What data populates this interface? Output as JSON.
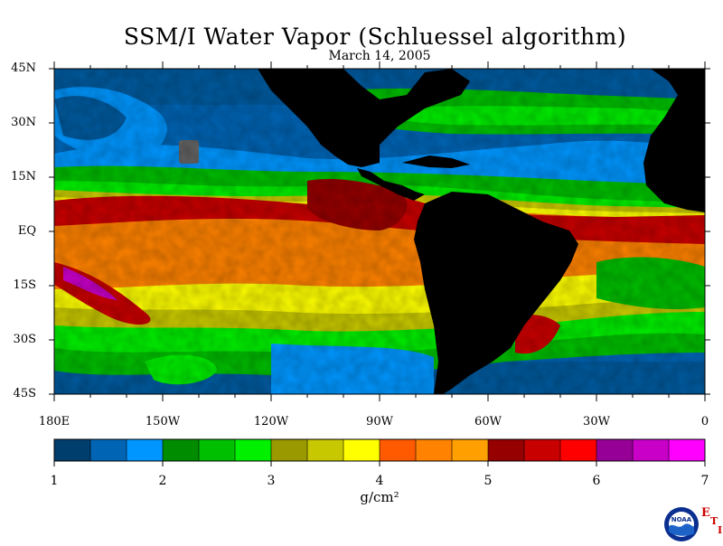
{
  "title": "SSM/I Water Vapor (Schluessel algorithm)",
  "date": "March 14, 2005",
  "latitude_labels": [
    "45N",
    "30N",
    "15N",
    "EQ",
    "15S",
    "30S",
    "45S"
  ],
  "longitude_labels": [
    "180E",
    "150W",
    "120W",
    "90W",
    "60W",
    "30W",
    "0"
  ],
  "colorbar": {
    "tick_labels": [
      "1",
      "2",
      "3",
      "4",
      "5",
      "6",
      "7"
    ],
    "units": "g/cm²",
    "colors": [
      "#003e6e",
      "#0064b4",
      "#0096ff",
      "#008c00",
      "#00be00",
      "#00f000",
      "#9a9a00",
      "#c8c800",
      "#ffff00",
      "#ff5a00",
      "#ff8200",
      "#ffa000",
      "#960000",
      "#c80000",
      "#ff0000",
      "#960096",
      "#c800c8",
      "#ff00ff"
    ]
  },
  "land_color": "#000000",
  "logo": {
    "text": "NOAA",
    "letters": [
      "E",
      "T",
      "I"
    ]
  }
}
